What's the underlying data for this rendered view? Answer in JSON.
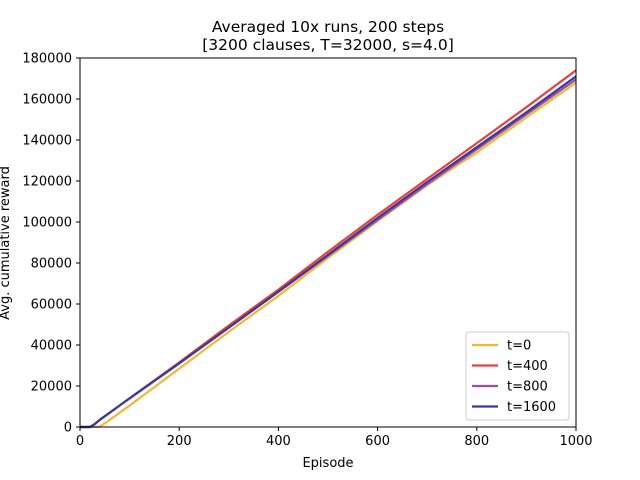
{
  "chart_data": {
    "type": "line",
    "title": "Averaged 10x runs, 200 steps",
    "subtitle": "[3200 clauses, T=32000, s=4.0]",
    "xlabel": "Episode",
    "ylabel": "Avg. cumulative reward",
    "xlim": [
      0,
      1000
    ],
    "ylim": [
      0,
      180000
    ],
    "xticks": [
      0,
      200,
      400,
      600,
      800,
      1000
    ],
    "yticks": [
      0,
      20000,
      40000,
      60000,
      80000,
      100000,
      120000,
      140000,
      160000,
      180000
    ],
    "grid": false,
    "legend_position": "bottom-right",
    "series": [
      {
        "name": "t=0",
        "color": "#f5b731",
        "points": [
          [
            0,
            0
          ],
          [
            20,
            0
          ],
          [
            40,
            200
          ],
          [
            60,
            3500
          ],
          [
            100,
            10500
          ],
          [
            200,
            28500
          ],
          [
            300,
            46500
          ],
          [
            400,
            64000
          ],
          [
            500,
            82500
          ],
          [
            600,
            100500
          ],
          [
            700,
            118000
          ],
          [
            800,
            134000
          ],
          [
            900,
            151000
          ],
          [
            1000,
            168000
          ]
        ]
      },
      {
        "name": "t=400",
        "color": "#e8403a",
        "points": [
          [
            0,
            0
          ],
          [
            20,
            0
          ],
          [
            30,
            1500
          ],
          [
            40,
            3500
          ],
          [
            60,
            7000
          ],
          [
            100,
            14000
          ],
          [
            200,
            31500
          ],
          [
            300,
            49500
          ],
          [
            400,
            67000
          ],
          [
            500,
            85500
          ],
          [
            600,
            103500
          ],
          [
            700,
            121000
          ],
          [
            800,
            138500
          ],
          [
            900,
            156000
          ],
          [
            1000,
            174000
          ]
        ]
      },
      {
        "name": "t=800",
        "color": "#9b4ea8",
        "points": [
          [
            0,
            0
          ],
          [
            20,
            0
          ],
          [
            30,
            1500
          ],
          [
            40,
            3500
          ],
          [
            60,
            7000
          ],
          [
            100,
            14000
          ],
          [
            200,
            31000
          ],
          [
            300,
            48500
          ],
          [
            400,
            66000
          ],
          [
            500,
            83500
          ],
          [
            600,
            101000
          ],
          [
            700,
            118500
          ],
          [
            800,
            135500
          ],
          [
            900,
            152500
          ],
          [
            1000,
            169500
          ]
        ]
      },
      {
        "name": "t=1600",
        "color": "#3a3a9a",
        "points": [
          [
            0,
            0
          ],
          [
            20,
            0
          ],
          [
            30,
            1500
          ],
          [
            40,
            3500
          ],
          [
            60,
            7000
          ],
          [
            100,
            14000
          ],
          [
            200,
            31000
          ],
          [
            300,
            48500
          ],
          [
            400,
            66000
          ],
          [
            500,
            84000
          ],
          [
            600,
            102000
          ],
          [
            700,
            119500
          ],
          [
            800,
            136500
          ],
          [
            900,
            153500
          ],
          [
            1000,
            171000
          ]
        ]
      }
    ]
  }
}
